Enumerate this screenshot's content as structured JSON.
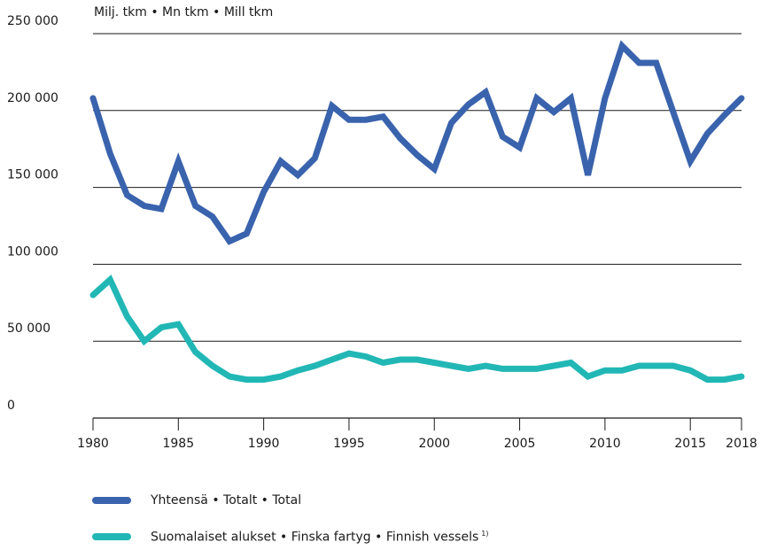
{
  "chart_data": {
    "type": "line",
    "unit_label": "Milj. tkm • Mn tkm • Mill tkm",
    "x": [
      1980,
      1981,
      1982,
      1983,
      1984,
      1985,
      1986,
      1987,
      1988,
      1989,
      1990,
      1991,
      1992,
      1993,
      1994,
      1995,
      1996,
      1997,
      1998,
      1999,
      2000,
      2001,
      2002,
      2003,
      2004,
      2005,
      2006,
      2007,
      2008,
      2009,
      2010,
      2011,
      2012,
      2013,
      2014,
      2015,
      2016,
      2017,
      2018
    ],
    "x_tick_labels": [
      "1980",
      "1985",
      "1990",
      "1995",
      "2000",
      "2005",
      "2010",
      "2015",
      "2018"
    ],
    "x_ticks": [
      1980,
      1985,
      1990,
      1995,
      2000,
      2005,
      2010,
      2015,
      2018
    ],
    "y_tick_labels": [
      "0",
      "50 000",
      "100 000",
      "150 000",
      "200 000",
      "250 000"
    ],
    "y_ticks": [
      0,
      50000,
      100000,
      150000,
      200000,
      250000
    ],
    "xlim": [
      1980,
      2018
    ],
    "ylim": [
      0,
      250000
    ],
    "grid": "horizontal",
    "legend_placement": "bottom",
    "series": [
      {
        "name": "Yhteensä • Totalt • Total",
        "color": "#3a63ad",
        "values": [
          208000,
          172000,
          145000,
          138000,
          136000,
          167000,
          138000,
          131000,
          115000,
          120000,
          147000,
          167000,
          158000,
          169000,
          203000,
          194000,
          194000,
          196000,
          182000,
          171000,
          162000,
          192000,
          204000,
          212000,
          183000,
          176000,
          208000,
          199000,
          208000,
          158000,
          208000,
          242000,
          231000,
          231000,
          199000,
          167000,
          185000,
          197000,
          208000
        ]
      },
      {
        "name": "Suomalaiset alukset • Finska fartyg • Finnish vessels",
        "footnote": "1)",
        "color": "#21b7b5",
        "values": [
          80000,
          90000,
          66000,
          50000,
          59000,
          61000,
          43000,
          34000,
          27000,
          25000,
          25000,
          27000,
          31000,
          34000,
          38000,
          42000,
          40000,
          36000,
          38000,
          38000,
          36000,
          34000,
          32000,
          34000,
          32000,
          32000,
          32000,
          34000,
          36000,
          27000,
          31000,
          31000,
          34000,
          34000,
          34000,
          31000,
          25000,
          25000,
          27000
        ]
      }
    ]
  }
}
